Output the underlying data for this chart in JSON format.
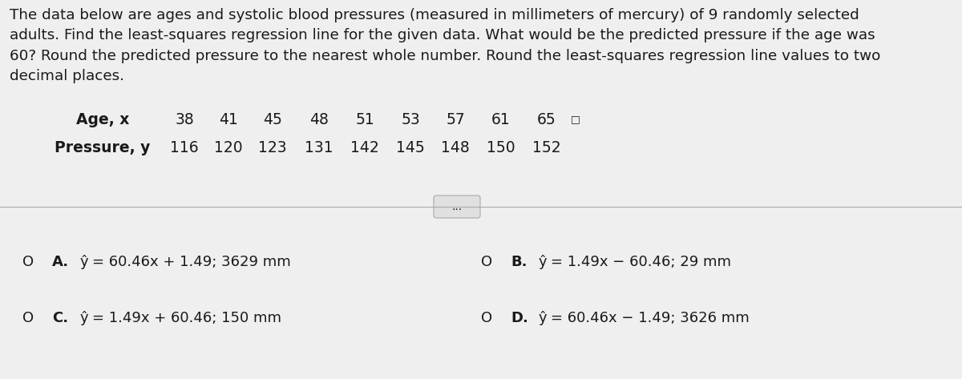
{
  "title_text": "The data below are ages and systolic blood pressures (measured in millimeters of mercury) of 9 randomly selected\nadults. Find the least-squares regression line for the given data. What would be the predicted pressure if the age was\n60? Round the predicted pressure to the nearest whole number. Round the least-squares regression line values to two\ndecimal places.",
  "table_label_age": "Age, x",
  "table_label_pressure": "Pressure, y",
  "ages": [
    "38",
    "41",
    "45",
    "48",
    "51",
    "53",
    "57",
    "61",
    "65"
  ],
  "pressures": [
    "116",
    "120",
    "123",
    "131",
    "142",
    "145",
    "148",
    "150",
    "152"
  ],
  "divider_dots": "...",
  "options": [
    {
      "label": "A.",
      "hat_y": "ŷ",
      "eq": "= 60.46x + 1.49; 3629 mm"
    },
    {
      "label": "B.",
      "hat_y": "ŷ",
      "eq": "= 1.49x − 60.46; 29 mm"
    },
    {
      "label": "C.",
      "hat_y": "ŷ",
      "eq": "= 1.49x + 60.46; 150 mm"
    },
    {
      "label": "D.",
      "hat_y": "ŷ",
      "eq": "= 60.46x − 1.49; 3626 mm"
    }
  ],
  "bg_color": "#efefef",
  "text_color": "#1a1a1a",
  "option_label_color": "#1a1a1a",
  "option_eq_color": "#1a1a1a",
  "circle_color": "#1a1a1a",
  "font_size_title": 13.2,
  "font_size_table": 13.5,
  "font_size_options": 13.0,
  "font_size_circle": 13.0
}
